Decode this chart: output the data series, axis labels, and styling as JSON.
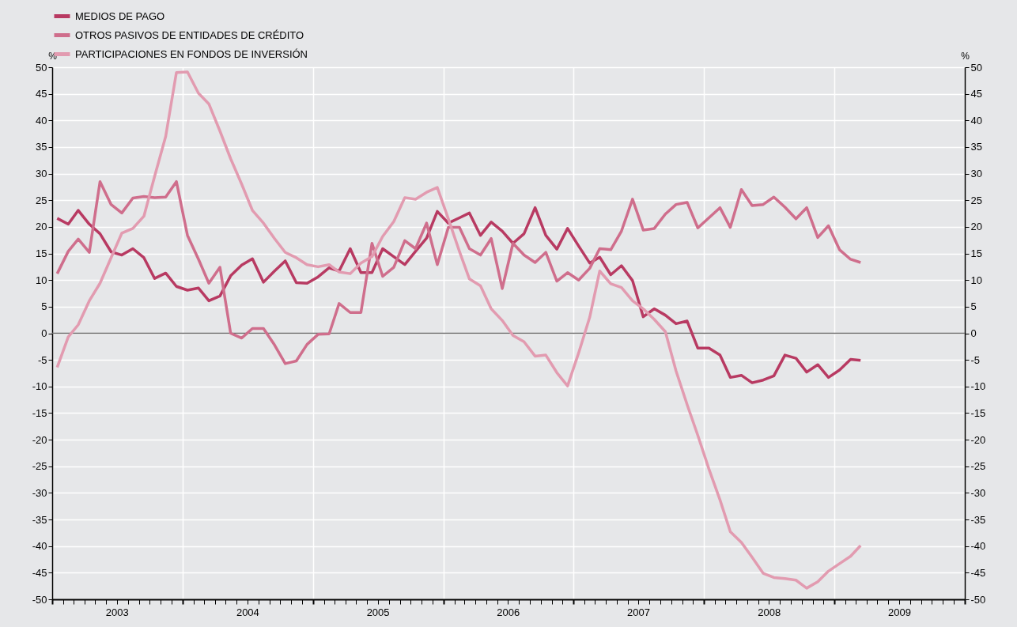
{
  "chart_data": {
    "type": "line",
    "x": [
      "2003-01-15",
      "2003-02-15",
      "2003-03-15",
      "2003-04-15",
      "2003-05-15",
      "2003-06-15",
      "2003-07-15",
      "2003-08-15",
      "2003-09-15",
      "2003-10-15",
      "2003-11-15",
      "2003-12-15",
      "2004-01-15",
      "2004-02-15",
      "2004-03-15",
      "2004-04-15",
      "2004-05-15",
      "2004-06-15",
      "2004-07-15",
      "2004-08-15",
      "2004-09-15",
      "2004-10-15",
      "2004-11-15",
      "2004-12-15",
      "2005-01-15",
      "2005-02-15",
      "2005-03-15",
      "2005-04-15",
      "2005-05-15",
      "2005-06-15",
      "2005-07-15",
      "2005-08-15",
      "2005-09-15",
      "2005-10-15",
      "2005-11-15",
      "2005-12-15",
      "2006-01-15",
      "2006-02-15",
      "2006-03-15",
      "2006-04-15",
      "2006-05-15",
      "2006-06-15",
      "2006-07-15",
      "2006-08-15",
      "2006-09-15",
      "2006-10-15",
      "2006-11-15",
      "2006-12-15",
      "2007-01-15",
      "2007-02-15",
      "2007-03-15",
      "2007-04-15",
      "2007-05-15",
      "2007-06-15",
      "2007-07-15",
      "2007-08-15",
      "2007-09-15",
      "2007-10-15",
      "2007-11-15",
      "2007-12-15",
      "2008-01-15",
      "2008-02-15",
      "2008-03-15",
      "2008-04-15",
      "2008-05-15",
      "2008-06-15",
      "2008-07-15",
      "2008-08-15",
      "2008-09-15",
      "2008-10-15",
      "2008-11-15",
      "2008-12-15",
      "2009-01-15",
      "2009-02-15",
      "2009-03-15"
    ],
    "series": [
      {
        "name": "MEDIOS DE PAGO",
        "color": "#b83a62",
        "values": [
          21.6,
          20.5,
          23.1,
          20.5,
          18.7,
          15.3,
          14.7,
          15.9,
          14.2,
          10.3,
          11.3,
          8.8,
          8.1,
          8.5,
          6.1,
          7.0,
          10.8,
          12.8,
          14.0,
          9.6,
          11.7,
          13.6,
          9.5,
          9.4,
          10.6,
          12.3,
          11.7,
          15.9,
          11.4,
          11.4,
          15.9,
          14.4,
          12.9,
          15.4,
          17.9,
          22.9,
          20.7,
          21.7,
          22.6,
          18.4,
          20.9,
          19.2,
          16.9,
          18.7,
          23.6,
          18.4,
          15.8,
          19.7,
          16.4,
          13.2,
          14.3,
          11.0,
          12.7,
          9.9,
          3.1,
          4.6,
          3.4,
          1.8,
          2.3,
          -2.8,
          -2.8,
          -4.1,
          -8.3,
          -7.9,
          -9.3,
          -8.8,
          -8.0,
          -4.1,
          -4.7,
          -7.3,
          -5.9,
          -8.3,
          -6.9,
          -4.9,
          -5.1
        ]
      },
      {
        "name": "OTROS PASIVOS DE ENTIDADES DE CRÉDITO",
        "color": "#cf6e8c",
        "values": [
          11.2,
          15.4,
          17.7,
          15.2,
          28.5,
          24.2,
          22.6,
          25.4,
          25.7,
          25.5,
          25.6,
          28.5,
          18.4,
          13.9,
          9.4,
          12.4,
          0.0,
          -0.9,
          0.9,
          0.9,
          -2.2,
          -5.7,
          -5.2,
          -2.1,
          -0.2,
          -0.1,
          5.6,
          3.9,
          3.9,
          16.9,
          10.7,
          12.4,
          17.4,
          15.9,
          20.7,
          12.9,
          19.9,
          19.9,
          15.9,
          14.7,
          17.8,
          8.4,
          16.9,
          14.7,
          13.3,
          15.2,
          9.8,
          11.4,
          10.0,
          12.2,
          15.9,
          15.7,
          19.2,
          25.2,
          19.4,
          19.7,
          22.4,
          24.2,
          24.6,
          19.8,
          21.7,
          23.6,
          19.9,
          27.0,
          24.0,
          24.2,
          25.6,
          23.7,
          21.5,
          23.6,
          18.0,
          20.2,
          15.7,
          13.9,
          13.3
        ]
      },
      {
        "name": "PARTICIPACIONES EN FONDOS DE INVERSIÓN",
        "color": "#e29bb0",
        "values": [
          -6.4,
          -0.7,
          1.6,
          6.1,
          9.4,
          14.2,
          18.8,
          19.7,
          22.0,
          29.5,
          37.0,
          49.0,
          49.1,
          45.1,
          43.1,
          38.0,
          32.8,
          28.0,
          23.1,
          20.7,
          17.8,
          15.2,
          14.2,
          12.9,
          12.5,
          12.9,
          11.5,
          11.2,
          13.2,
          14.4,
          18.2,
          21.0,
          25.5,
          25.2,
          26.5,
          27.4,
          21.5,
          15.4,
          10.2,
          8.9,
          4.6,
          2.4,
          -0.4,
          -1.6,
          -4.3,
          -4.1,
          -7.4,
          -9.9,
          -3.7,
          3.0,
          11.7,
          9.3,
          8.6,
          6.1,
          4.6,
          2.6,
          0.3,
          -7.1,
          -13.4,
          -19.2,
          -25.5,
          -31.3,
          -37.3,
          -39.3,
          -42.1,
          -45.1,
          -45.9,
          -46.1,
          -46.4,
          -47.9,
          -46.7,
          -44.7,
          -43.3,
          -41.9,
          -39.9
        ]
      }
    ],
    "xlim": [
      "2003-01-01",
      "2010-01-01"
    ],
    "xticks": [
      {
        "value": "2003-01-01",
        "label": null
      },
      {
        "value": "2003-02-01",
        "label": null
      },
      {
        "value": "2003-03-01",
        "label": null
      },
      {
        "value": "2003-04-01",
        "label": null
      },
      {
        "value": "2003-05-01",
        "label": null
      },
      {
        "value": "2003-06-01",
        "label": null
      },
      {
        "value": "2003-07-01",
        "label": "2003"
      },
      {
        "value": "2003-08-01",
        "label": null
      },
      {
        "value": "2003-09-01",
        "label": null
      },
      {
        "value": "2003-10-01",
        "label": null
      },
      {
        "value": "2003-11-01",
        "label": null
      },
      {
        "value": "2003-12-01",
        "label": null
      },
      {
        "value": "2004-01-01",
        "label": null
      },
      {
        "value": "2004-02-01",
        "label": null
      },
      {
        "value": "2004-03-01",
        "label": null
      },
      {
        "value": "2004-04-01",
        "label": null
      },
      {
        "value": "2004-05-01",
        "label": null
      },
      {
        "value": "2004-06-01",
        "label": null
      },
      {
        "value": "2004-07-01",
        "label": "2004"
      },
      {
        "value": "2004-08-01",
        "label": null
      },
      {
        "value": "2004-09-01",
        "label": null
      },
      {
        "value": "2004-10-01",
        "label": null
      },
      {
        "value": "2004-11-01",
        "label": null
      },
      {
        "value": "2004-12-01",
        "label": null
      },
      {
        "value": "2005-01-01",
        "label": null
      },
      {
        "value": "2005-02-01",
        "label": null
      },
      {
        "value": "2005-03-01",
        "label": null
      },
      {
        "value": "2005-04-01",
        "label": null
      },
      {
        "value": "2005-05-01",
        "label": null
      },
      {
        "value": "2005-06-01",
        "label": null
      },
      {
        "value": "2005-07-01",
        "label": "2005"
      },
      {
        "value": "2005-08-01",
        "label": null
      },
      {
        "value": "2005-09-01",
        "label": null
      },
      {
        "value": "2005-10-01",
        "label": null
      },
      {
        "value": "2005-11-01",
        "label": null
      },
      {
        "value": "2005-12-01",
        "label": null
      },
      {
        "value": "2006-01-01",
        "label": null
      },
      {
        "value": "2006-02-01",
        "label": null
      },
      {
        "value": "2006-03-01",
        "label": null
      },
      {
        "value": "2006-04-01",
        "label": null
      },
      {
        "value": "2006-05-01",
        "label": null
      },
      {
        "value": "2006-06-01",
        "label": null
      },
      {
        "value": "2006-07-01",
        "label": "2006"
      },
      {
        "value": "2006-08-01",
        "label": null
      },
      {
        "value": "2006-09-01",
        "label": null
      },
      {
        "value": "2006-10-01",
        "label": null
      },
      {
        "value": "2006-11-01",
        "label": null
      },
      {
        "value": "2006-12-01",
        "label": null
      },
      {
        "value": "2007-01-01",
        "label": null
      },
      {
        "value": "2007-02-01",
        "label": null
      },
      {
        "value": "2007-03-01",
        "label": null
      },
      {
        "value": "2007-04-01",
        "label": null
      },
      {
        "value": "2007-05-01",
        "label": null
      },
      {
        "value": "2007-06-01",
        "label": null
      },
      {
        "value": "2007-07-01",
        "label": "2007"
      },
      {
        "value": "2007-08-01",
        "label": null
      },
      {
        "value": "2007-09-01",
        "label": null
      },
      {
        "value": "2007-10-01",
        "label": null
      },
      {
        "value": "2007-11-01",
        "label": null
      },
      {
        "value": "2007-12-01",
        "label": null
      },
      {
        "value": "2008-01-01",
        "label": null
      },
      {
        "value": "2008-02-01",
        "label": null
      },
      {
        "value": "2008-03-01",
        "label": null
      },
      {
        "value": "2008-04-01",
        "label": null
      },
      {
        "value": "2008-05-01",
        "label": null
      },
      {
        "value": "2008-06-01",
        "label": null
      },
      {
        "value": "2008-07-01",
        "label": "2008"
      },
      {
        "value": "2008-08-01",
        "label": null
      },
      {
        "value": "2008-09-01",
        "label": null
      },
      {
        "value": "2008-10-01",
        "label": null
      },
      {
        "value": "2008-11-01",
        "label": null
      },
      {
        "value": "2008-12-01",
        "label": null
      },
      {
        "value": "2009-01-01",
        "label": null
      },
      {
        "value": "2009-02-01",
        "label": null
      },
      {
        "value": "2009-03-01",
        "label": null
      },
      {
        "value": "2009-04-01",
        "label": null
      },
      {
        "value": "2009-05-01",
        "label": null
      },
      {
        "value": "2009-06-01",
        "label": null
      },
      {
        "value": "2009-07-01",
        "label": "2009"
      },
      {
        "value": "2009-08-01",
        "label": null
      },
      {
        "value": "2009-09-01",
        "label": null
      },
      {
        "value": "2009-10-01",
        "label": null
      },
      {
        "value": "2009-11-01",
        "label": null
      },
      {
        "value": "2009-12-01",
        "label": null
      },
      {
        "value": "2010-01-01",
        "label": null
      }
    ],
    "ylim": [
      -50,
      50
    ],
    "yticks": [
      -50,
      -45,
      -40,
      -35,
      -30,
      -25,
      -20,
      -15,
      -10,
      -5,
      0,
      5,
      10,
      15,
      20,
      25,
      30,
      35,
      40,
      45,
      50
    ],
    "y2lim": [
      -50,
      50
    ],
    "y2ticks": [
      -50,
      -45,
      -40,
      -35,
      -30,
      -25,
      -20,
      -15,
      -10,
      -5,
      0,
      5,
      10,
      15,
      20,
      25,
      30,
      35,
      40,
      45,
      50
    ],
    "ylabel": "%",
    "y2label": "%",
    "ref_lines": [
      {
        "axis": "y",
        "value": 0,
        "color": "#6e6e6e"
      }
    ],
    "grid": true,
    "legend": "top"
  }
}
